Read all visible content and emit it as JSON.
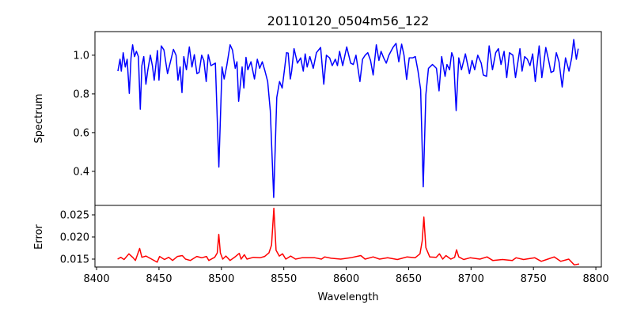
{
  "chart_data": [
    {
      "type": "line",
      "title": "20110120_0504m56_122",
      "xlabel": "Wavelength",
      "ylabel": "Spectrum",
      "xlim": [
        8398.7,
        8804.4
      ],
      "ylim": [
        0.224,
        1.122
      ],
      "xticks": [
        8400,
        8450,
        8500,
        8550,
        8600,
        8650,
        8700,
        8750,
        8800
      ],
      "yticks": [
        0.4,
        0.6,
        0.8,
        1.0
      ],
      "ytick_labels": [
        "0.4",
        "0.6",
        "0.8",
        "1.0"
      ],
      "grid": false,
      "series": [
        {
          "name": "Spectrum",
          "color": "#0000ff",
          "x": [
            8417.1,
            8418.8,
            8419.8,
            8421.3,
            8423.0,
            8424.5,
            8426.2,
            8427.6,
            8428.9,
            8430.4,
            8431.9,
            8433.5,
            8435.0,
            8436.3,
            8437.8,
            8439.5,
            8440.9,
            8443.1,
            8444.7,
            8446.2,
            8448.8,
            8450.0,
            8451.9,
            8454.0,
            8456.8,
            8458.9,
            8461.6,
            8463.7,
            8465.2,
            8466.9,
            8468.4,
            8469.9,
            8472.0,
            8474.3,
            8476.4,
            8478.3,
            8480.4,
            8482.1,
            8484.2,
            8485.9,
            8487.8,
            8489.5,
            8491.6,
            8495.2,
            8498.0,
            8500.5,
            8502.2,
            8504.3,
            8507.0,
            8508.9,
            8511.1,
            8512.5,
            8513.8,
            8516.6,
            8518.0,
            8519.7,
            8521.2,
            8523.7,
            8526.5,
            8528.8,
            8530.7,
            8532.8,
            8534.9,
            8537.1,
            8539.2,
            8541.9,
            8544.4,
            8546.6,
            8548.7,
            8550.4,
            8552.2,
            8553.5,
            8555.2,
            8556.3,
            8558.2,
            8560.9,
            8563.5,
            8565.6,
            8567.1,
            8568.7,
            8570.9,
            8573.6,
            8576.1,
            8579.5,
            8582.0,
            8584.1,
            8586.7,
            8588.8,
            8591.3,
            8593.0,
            8594.7,
            8597.2,
            8600.4,
            8603.6,
            8605.7,
            8607.8,
            8611.0,
            8613.1,
            8615.2,
            8617.3,
            8619.5,
            8621.6,
            8624.1,
            8626.2,
            8627.9,
            8630.0,
            8632.1,
            8634.2,
            8637.4,
            8639.9,
            8642.1,
            8644.4,
            8646.3,
            8648.4,
            8650.5,
            8653.2,
            8655.4,
            8657.5,
            8659.6,
            8661.7,
            8663.8,
            8665.9,
            8669.1,
            8672.3,
            8674.4,
            8676.5,
            8679.2,
            8680.7,
            8682.8,
            8684.5,
            8686.0,
            8688.1,
            8690.2,
            8692.3,
            8695.5,
            8698.7,
            8700.8,
            8702.9,
            8705.4,
            8708.2,
            8709.8,
            8712.4,
            8714.5,
            8717.2,
            8719.8,
            8721.9,
            8724.0,
            8726.5,
            8728.6,
            8730.8,
            8733.5,
            8735.6,
            8739.2,
            8740.9,
            8743.0,
            8745.1,
            8747.2,
            8749.4,
            8751.5,
            8754.6,
            8756.7,
            8759.9,
            8762.0,
            8764.1,
            8766.2,
            8768.3,
            8770.5,
            8773.0,
            8775.7,
            8778.5,
            8780.6,
            8782.3,
            8784.4,
            8785.9
          ],
          "y": [
            0.918,
            0.979,
            0.918,
            1.013,
            0.939,
            0.979,
            0.803,
            0.986,
            1.054,
            0.993,
            1.02,
            0.993,
            0.721,
            0.946,
            0.993,
            0.85,
            0.918,
            1.0,
            0.946,
            0.871,
            1.024,
            0.871,
            1.048,
            1.027,
            0.905,
            0.959,
            1.03,
            1.0,
            0.871,
            0.939,
            0.807,
            0.993,
            0.925,
            1.043,
            0.939,
            1.003,
            0.905,
            0.911,
            1.0,
            0.973,
            0.864,
            1.003,
            0.946,
            0.959,
            0.422,
            0.939,
            0.877,
            0.946,
            1.054,
            1.027,
            0.932,
            0.966,
            0.762,
            0.939,
            0.83,
            0.989,
            0.925,
            0.966,
            0.877,
            0.979,
            0.932,
            0.966,
            0.918,
            0.864,
            0.714,
            0.265,
            0.782,
            0.864,
            0.83,
            0.918,
            1.013,
            1.011,
            0.877,
            0.918,
            1.034,
            0.959,
            0.986,
            0.918,
            1.007,
            0.939,
            0.993,
            0.932,
            1.013,
            1.04,
            0.85,
            1.0,
            0.986,
            0.946,
            0.979,
            0.946,
            1.02,
            0.946,
            1.043,
            0.959,
            0.952,
            1.0,
            0.864,
            0.979,
            1.0,
            1.013,
            0.973,
            0.898,
            1.054,
            0.973,
            1.02,
            0.986,
            0.959,
            1.0,
            1.04,
            1.061,
            0.966,
            1.057,
            1.0,
            0.875,
            0.986,
            0.986,
            0.993,
            0.918,
            0.823,
            0.32,
            0.796,
            0.932,
            0.952,
            0.932,
            0.816,
            0.993,
            0.891,
            0.952,
            0.925,
            1.013,
            0.986,
            0.714,
            0.986,
            0.925,
            1.007,
            0.905,
            0.973,
            0.925,
            1.0,
            0.959,
            0.898,
            0.891,
            1.048,
            0.925,
            1.013,
            1.034,
            0.952,
            1.02,
            0.884,
            1.013,
            1.0,
            0.884,
            1.034,
            0.918,
            0.993,
            0.979,
            0.946,
            1.007,
            0.864,
            1.048,
            0.884,
            1.04,
            0.979,
            0.911,
            0.918,
            1.013,
            0.966,
            0.836,
            0.986,
            0.918,
            0.986,
            1.081,
            0.979,
            1.034
          ]
        }
      ]
    },
    {
      "type": "line",
      "xlabel": "Wavelength",
      "ylabel": "Error",
      "xlim": [
        8398.7,
        8804.4
      ],
      "ylim": [
        0.01321,
        0.02714
      ],
      "xticks": [
        8400,
        8450,
        8500,
        8550,
        8600,
        8650,
        8700,
        8750,
        8800
      ],
      "xtick_labels": [
        "8400",
        "8450",
        "8500",
        "8550",
        "8600",
        "8650",
        "8700",
        "8750",
        "8800"
      ],
      "yticks": [
        0.015,
        0.02,
        0.025
      ],
      "ytick_labels": [
        "0.015",
        "0.020",
        "0.025"
      ],
      "grid": false,
      "series": [
        {
          "name": "Error",
          "color": "#ff0000",
          "x": [
            8416.8,
            8419.4,
            8422.0,
            8425.9,
            8429.3,
            8431.1,
            8434.5,
            8436.3,
            8439.6,
            8444.1,
            8448.5,
            8450.5,
            8454.4,
            8457.8,
            8460.9,
            8464.8,
            8468.7,
            8471.3,
            8475.1,
            8480.3,
            8484.2,
            8488.1,
            8489.9,
            8494.6,
            8496.7,
            8497.9,
            8499.2,
            8501.1,
            8503.6,
            8507.0,
            8511.4,
            8514.3,
            8515.8,
            8518.4,
            8520.5,
            8525.7,
            8530.9,
            8534.7,
            8538.1,
            8540.2,
            8542.0,
            8543.8,
            8546.4,
            8549.0,
            8551.6,
            8555.5,
            8559.4,
            8564.5,
            8569.7,
            8574.9,
            8580.1,
            8582.7,
            8587.9,
            8595.6,
            8603.4,
            8611.7,
            8615.1,
            8621.6,
            8626.7,
            8633.2,
            8641.0,
            8648.8,
            8655.2,
            8659.1,
            8660.9,
            8662.2,
            8663.8,
            8666.9,
            8672.1,
            8674.7,
            8677.3,
            8679.9,
            8683.8,
            8686.9,
            8688.4,
            8690.2,
            8694.1,
            8699.3,
            8707.1,
            8712.8,
            8717.4,
            8725.2,
            8733.0,
            8736.1,
            8742.1,
            8751.1,
            8756.3,
            8761.5,
            8766.7,
            8771.8,
            8778.3,
            8782.7,
            8786.6
          ],
          "y": [
            0.015,
            0.0154,
            0.0149,
            0.0162,
            0.0153,
            0.0147,
            0.0174,
            0.0154,
            0.0157,
            0.015,
            0.0143,
            0.0156,
            0.0149,
            0.0154,
            0.0147,
            0.0156,
            0.0158,
            0.015,
            0.0147,
            0.0156,
            0.0153,
            0.0156,
            0.0147,
            0.0154,
            0.0164,
            0.0206,
            0.0164,
            0.015,
            0.0157,
            0.0147,
            0.0156,
            0.0163,
            0.015,
            0.016,
            0.015,
            0.0154,
            0.0153,
            0.0156,
            0.0164,
            0.0182,
            0.0265,
            0.017,
            0.0157,
            0.0162,
            0.015,
            0.0157,
            0.015,
            0.0153,
            0.0153,
            0.0153,
            0.015,
            0.0155,
            0.0152,
            0.015,
            0.0153,
            0.0158,
            0.015,
            0.0155,
            0.015,
            0.0153,
            0.0149,
            0.0155,
            0.0153,
            0.0162,
            0.0191,
            0.0245,
            0.0176,
            0.0155,
            0.0154,
            0.0162,
            0.015,
            0.0158,
            0.015,
            0.0154,
            0.0171,
            0.0155,
            0.0149,
            0.0153,
            0.015,
            0.0155,
            0.0147,
            0.0149,
            0.0147,
            0.0153,
            0.0149,
            0.0153,
            0.0145,
            0.015,
            0.0155,
            0.0145,
            0.015,
            0.0137,
            0.0139
          ]
        }
      ]
    }
  ]
}
